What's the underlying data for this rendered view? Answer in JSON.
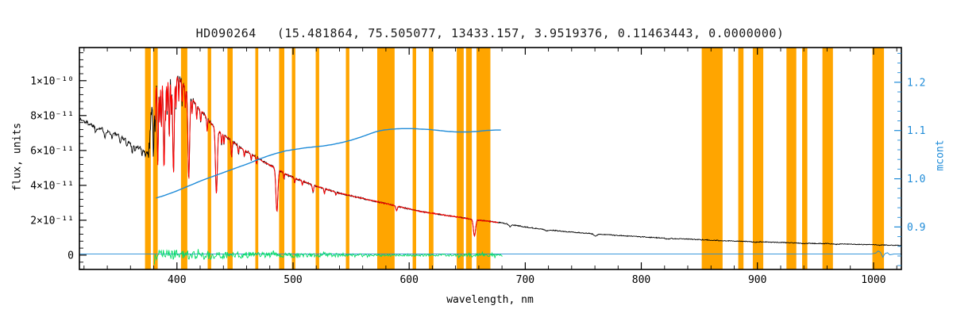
{
  "plot": {
    "title_star": "HD090264",
    "title_params": "(15.481864, 75.505077, 13433.157, 3.9519376, 0.11463443, 0.0000000)",
    "xlabel": "wavelength, nm",
    "ylabel_left": "flux, units",
    "ylabel_right": "mcont"
  },
  "chart_data": {
    "type": "line",
    "title": "HD090264  (15.481864, 75.505077, 13433.157, 3.9519376, 0.11463443, 0.0000000)",
    "xlabel": "wavelength, nm",
    "ylabel_left": "flux, units",
    "ylabel_right": "mcont",
    "flux_unit_scale": "values below are flux in units of 1e-11",
    "xlim": [
      316,
      1024
    ],
    "ylim_left_1e11": [
      -0.82,
      11.9
    ],
    "ylim_right": [
      0.812,
      1.272
    ],
    "x_ticks": [
      400,
      500,
      600,
      700,
      800,
      900,
      1000
    ],
    "x_minor_step": 20,
    "y_left_ticks": [
      {
        "v": 0,
        "label": "0"
      },
      {
        "v": 2,
        "label": "2×10⁻¹¹"
      },
      {
        "v": 4,
        "label": "4×10⁻¹¹"
      },
      {
        "v": 6,
        "label": "6×10⁻¹¹"
      },
      {
        "v": 8,
        "label": "8×10⁻¹¹"
      },
      {
        "v": 10,
        "label": "1×10⁻¹⁰"
      }
    ],
    "y_right_ticks": [
      {
        "v": 0.9,
        "label": "0.9"
      },
      {
        "v": 1.0,
        "label": "1.0"
      },
      {
        "v": 1.1,
        "label": "1.1"
      },
      {
        "v": 1.2,
        "label": "1.2"
      }
    ],
    "colors": {
      "masked_band": "#FFA500",
      "spectrum": "#000000",
      "model": "#FF0000",
      "residual": "#00DC64",
      "mcont": "#1E8BD8",
      "frame": "#000000"
    },
    "series": [
      {
        "name": "observed spectrum",
        "color": "#000000",
        "axis": "left"
      },
      {
        "name": "model fit",
        "color": "#FF0000",
        "axis": "left"
      },
      {
        "name": "fit residual",
        "color": "#00DC64",
        "axis": "left"
      },
      {
        "name": "mcont continuum ratio",
        "color": "#1E8BD8",
        "axis": "right"
      }
    ],
    "masked_bands": [
      [
        372.5,
        377.5
      ],
      [
        379.5,
        383.5
      ],
      [
        403.5,
        409.0
      ],
      [
        426.5,
        429.5
      ],
      [
        443.5,
        448.0
      ],
      [
        467.5,
        470.0
      ],
      [
        488.0,
        492.5
      ],
      [
        499.0,
        502.0
      ],
      [
        519.5,
        522.5
      ],
      [
        545.5,
        548.5
      ],
      [
        572.5,
        587.5
      ],
      [
        603.0,
        606.0
      ],
      [
        617.0,
        621.0
      ],
      [
        641.0,
        647.0
      ],
      [
        649.0,
        654.0
      ],
      [
        658.0,
        670.0
      ],
      [
        852.0,
        870.0
      ],
      [
        883.5,
        888.0
      ],
      [
        896.0,
        905.0
      ],
      [
        925.0,
        933.5
      ],
      [
        938.5,
        943.0
      ],
      [
        956.0,
        965.0
      ],
      [
        999.0,
        1009.0
      ]
    ],
    "spectrum_continuum_anchors": [
      [
        316,
        7.8
      ],
      [
        324,
        7.55
      ],
      [
        332,
        7.3
      ],
      [
        340,
        7.1
      ],
      [
        348,
        6.9
      ],
      [
        356,
        6.6
      ],
      [
        362,
        6.3
      ],
      [
        368,
        6.15
      ],
      [
        373,
        5.97
      ],
      [
        375.5,
        5.9
      ],
      [
        376.5,
        6.5
      ],
      [
        377.5,
        7.8
      ],
      [
        378.5,
        8.9
      ],
      [
        380,
        9.6
      ],
      [
        382,
        9.9
      ],
      [
        386,
        10.08
      ],
      [
        392,
        10.15
      ],
      [
        398,
        10.2
      ],
      [
        402,
        10.15
      ],
      [
        406,
        9.75
      ],
      [
        410,
        9.25
      ],
      [
        414,
        8.9
      ],
      [
        418,
        8.5
      ],
      [
        422,
        8.2
      ],
      [
        426,
        7.85
      ],
      [
        430,
        7.5
      ],
      [
        434,
        7.25
      ],
      [
        438,
        7.0
      ],
      [
        442,
        6.8
      ],
      [
        446,
        6.6
      ],
      [
        450,
        6.4
      ],
      [
        455,
        6.15
      ],
      [
        460,
        5.95
      ],
      [
        465,
        5.75
      ],
      [
        470,
        5.55
      ],
      [
        475,
        5.35
      ],
      [
        480,
        5.15
      ],
      [
        485,
        5.0
      ],
      [
        490,
        4.8
      ],
      [
        495,
        4.6
      ],
      [
        500,
        4.45
      ],
      [
        510,
        4.2
      ],
      [
        520,
        3.95
      ],
      [
        530,
        3.75
      ],
      [
        540,
        3.55
      ],
      [
        550,
        3.4
      ],
      [
        560,
        3.25
      ],
      [
        570,
        3.1
      ],
      [
        580,
        2.95
      ],
      [
        590,
        2.8
      ],
      [
        600,
        2.65
      ],
      [
        610,
        2.5
      ],
      [
        620,
        2.4
      ],
      [
        630,
        2.3
      ],
      [
        640,
        2.2
      ],
      [
        650,
        2.1
      ],
      [
        660,
        2.0
      ],
      [
        670,
        1.93
      ],
      [
        680,
        1.85
      ],
      [
        690,
        1.72
      ],
      [
        700,
        1.62
      ],
      [
        710,
        1.53
      ],
      [
        720,
        1.45
      ],
      [
        730,
        1.38
      ],
      [
        740,
        1.32
      ],
      [
        750,
        1.27
      ],
      [
        760,
        1.22
      ],
      [
        770,
        1.17
      ],
      [
        780,
        1.13
      ],
      [
        790,
        1.09
      ],
      [
        800,
        1.05
      ],
      [
        810,
        1.01
      ],
      [
        820,
        0.98
      ],
      [
        830,
        0.95
      ],
      [
        840,
        0.92
      ],
      [
        850,
        0.89
      ],
      [
        860,
        0.86
      ],
      [
        870,
        0.83
      ],
      [
        880,
        0.81
      ],
      [
        890,
        0.79
      ],
      [
        900,
        0.77
      ],
      [
        910,
        0.75
      ],
      [
        920,
        0.73
      ],
      [
        930,
        0.71
      ],
      [
        940,
        0.69
      ],
      [
        950,
        0.67
      ],
      [
        960,
        0.66
      ],
      [
        970,
        0.64
      ],
      [
        980,
        0.63
      ],
      [
        990,
        0.61
      ],
      [
        1000,
        0.6
      ],
      [
        1010,
        0.58
      ],
      [
        1024,
        0.56
      ]
    ],
    "absorption_lines": [
      [
        330,
        0.04,
        0.8
      ],
      [
        338,
        0.05,
        0.8
      ],
      [
        344,
        0.04,
        0.7
      ],
      [
        351,
        0.05,
        0.7
      ],
      [
        357,
        0.05,
        0.7
      ],
      [
        361.5,
        0.06,
        0.8
      ],
      [
        364,
        0.05,
        0.6
      ],
      [
        370,
        0.06,
        0.7
      ],
      [
        373,
        0.05,
        0.6
      ],
      [
        379.8,
        0.42,
        0.7
      ],
      [
        381.2,
        0.3,
        0.5
      ],
      [
        383.5,
        0.48,
        0.7
      ],
      [
        385.2,
        0.25,
        0.45
      ],
      [
        386.6,
        0.28,
        0.5
      ],
      [
        388.9,
        0.52,
        0.8
      ],
      [
        390.3,
        0.22,
        0.4
      ],
      [
        391.6,
        0.2,
        0.4
      ],
      [
        393.4,
        0.34,
        0.6
      ],
      [
        395.1,
        0.2,
        0.4
      ],
      [
        397.0,
        0.54,
        0.9
      ],
      [
        399.2,
        0.18,
        0.4
      ],
      [
        401.6,
        0.14,
        0.4
      ],
      [
        404.5,
        0.14,
        0.4
      ],
      [
        407.2,
        0.13,
        0.45
      ],
      [
        410.2,
        0.53,
        1.0
      ],
      [
        413.0,
        0.1,
        0.5
      ],
      [
        417.0,
        0.1,
        0.5
      ],
      [
        420.5,
        0.09,
        0.5
      ],
      [
        426.0,
        0.1,
        0.5
      ],
      [
        434.0,
        0.52,
        1.1
      ],
      [
        438.5,
        0.09,
        0.5
      ],
      [
        440.5,
        0.08,
        0.4
      ],
      [
        447.1,
        0.14,
        0.6
      ],
      [
        453.0,
        0.07,
        0.5
      ],
      [
        458.0,
        0.07,
        0.5
      ],
      [
        464.0,
        0.06,
        0.5
      ],
      [
        468.5,
        0.07,
        0.5
      ],
      [
        486.1,
        0.5,
        1.2
      ],
      [
        492.2,
        0.07,
        0.5
      ],
      [
        501.5,
        0.07,
        0.5
      ],
      [
        508.0,
        0.06,
        0.5
      ],
      [
        517.2,
        0.1,
        0.8
      ],
      [
        527.0,
        0.08,
        0.6
      ],
      [
        537.0,
        0.05,
        0.5
      ],
      [
        589.2,
        0.1,
        0.8
      ],
      [
        656.3,
        0.46,
        1.3
      ],
      [
        687.0,
        0.07,
        1.4
      ],
      [
        718.5,
        0.05,
        2.0
      ],
      [
        760.5,
        0.09,
        2.0
      ],
      [
        822.5,
        0.05,
        2.0
      ],
      [
        898.0,
        0.04,
        2.5
      ],
      [
        940.0,
        0.04,
        3.0
      ],
      [
        968.0,
        0.04,
        2.5
      ],
      [
        1005.0,
        0.03,
        2.0
      ]
    ],
    "spectrum_noise_regions": [
      [
        316,
        375,
        0.12
      ],
      [
        375,
        384,
        0.4
      ],
      [
        384,
        405,
        0.25
      ],
      [
        405,
        430,
        0.12
      ],
      [
        430,
        470,
        0.08
      ],
      [
        470,
        520,
        0.055
      ],
      [
        520,
        600,
        0.04
      ],
      [
        600,
        700,
        0.03
      ],
      [
        700,
        860,
        0.025
      ],
      [
        860,
        1024,
        0.022
      ]
    ],
    "model_range": [
      381.5,
      677
    ],
    "residual_range": [
      380.5,
      681
    ],
    "residual_noise_regions": [
      [
        380,
        400,
        0.3
      ],
      [
        400,
        430,
        0.24
      ],
      [
        430,
        470,
        0.2
      ],
      [
        470,
        505,
        0.16
      ],
      [
        505,
        560,
        0.11
      ],
      [
        560,
        640,
        0.07
      ],
      [
        640,
        682,
        0.09
      ]
    ],
    "mcont_range": [
      382,
      680
    ],
    "mcont_anchors": [
      [
        382,
        0.96
      ],
      [
        390,
        0.966
      ],
      [
        398,
        0.973
      ],
      [
        406,
        0.981
      ],
      [
        414,
        0.989
      ],
      [
        422,
        0.997
      ],
      [
        430,
        1.004
      ],
      [
        438,
        1.011
      ],
      [
        446,
        1.018
      ],
      [
        454,
        1.025
      ],
      [
        462,
        1.032
      ],
      [
        470,
        1.04
      ],
      [
        478,
        1.047
      ],
      [
        486,
        1.053
      ],
      [
        494,
        1.058
      ],
      [
        502,
        1.061
      ],
      [
        510,
        1.064
      ],
      [
        518,
        1.066
      ],
      [
        526,
        1.068
      ],
      [
        534,
        1.071
      ],
      [
        542,
        1.075
      ],
      [
        550,
        1.08
      ],
      [
        558,
        1.086
      ],
      [
        566,
        1.093
      ],
      [
        572,
        1.098
      ],
      [
        578,
        1.101
      ],
      [
        586,
        1.103
      ],
      [
        594,
        1.104
      ],
      [
        602,
        1.104
      ],
      [
        610,
        1.103
      ],
      [
        618,
        1.102
      ],
      [
        626,
        1.1
      ],
      [
        634,
        1.098
      ],
      [
        642,
        1.097
      ],
      [
        650,
        1.097
      ],
      [
        658,
        1.098
      ],
      [
        666,
        1.1
      ],
      [
        674,
        1.101
      ],
      [
        680,
        1.101
      ]
    ],
    "baseline_anchors": [
      [
        316,
        0.07
      ],
      [
        998,
        0.07
      ],
      [
        1002,
        0.12
      ],
      [
        1005,
        0.3
      ],
      [
        1008,
        -0.12
      ],
      [
        1011,
        0.2
      ],
      [
        1014,
        0.02
      ],
      [
        1018,
        0.07
      ],
      [
        1024,
        0.07
      ]
    ],
    "noise_seed": 1337,
    "layout": {
      "grid": false,
      "legend": "none"
    }
  }
}
